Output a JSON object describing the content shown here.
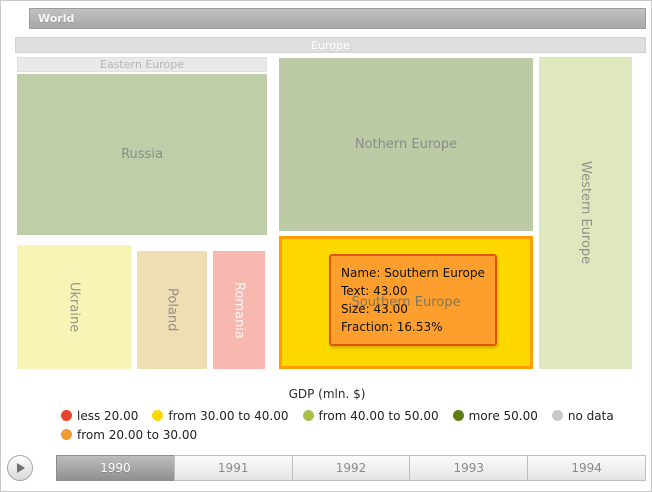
{
  "treemap": {
    "root_label": "World",
    "level1_label": "Europe",
    "group_labels": {
      "eastern": "Eastern Europe"
    },
    "nodes": {
      "russia": {
        "label": "Russia"
      },
      "ukraine": {
        "label": "Ukraine"
      },
      "poland": {
        "label": "Poland"
      },
      "romania": {
        "label": "Romania"
      },
      "nothern": {
        "label": "Nothern Europe"
      },
      "southern": {
        "label": "Southern Europe"
      },
      "western": {
        "label": "Western Europe"
      }
    }
  },
  "tooltip": {
    "name_line": "Name: Southern Europe",
    "text_line": "Text: 43.00",
    "size_line": "Size: 43.00",
    "fraction_line": "Fraction: 16.53%"
  },
  "legend": {
    "title": "GDP (mln. $)",
    "row1": [
      {
        "label": "less 20.00",
        "color": "#e8432a"
      },
      {
        "label": "from 30.00 to 40.00",
        "color": "#ffd700"
      },
      {
        "label": "from 40.00 to 50.00",
        "color": "#a9bf4d"
      },
      {
        "label": "more 50.00",
        "color": "#5e7d17"
      },
      {
        "label": "no data",
        "color": "#c9c9c9"
      }
    ],
    "row2": [
      {
        "label": "from 20.00 to 30.00",
        "color": "#f29b30"
      }
    ]
  },
  "timeline": {
    "play_icon": "play-icon",
    "years": [
      "1990",
      "1991",
      "1992",
      "1993",
      "1994"
    ],
    "selected_year": "1990"
  },
  "colors": {
    "selected_node_fill": "#ffd800",
    "selected_node_border": "#ff9c00",
    "tooltip_fill": "#fd9b2f",
    "tooltip_border": "#e05600",
    "node_green": "#bccaa6",
    "node_light_green": "#dfe7bd",
    "node_pale_yellow": "#f8f4b5",
    "node_tan": "#efddb4",
    "node_pink": "#f8b8b0",
    "header_gray": "#b3b3b3"
  },
  "chart_data": {
    "type": "treemap",
    "title": "GDP (mln. $)",
    "hierarchy": [
      "World",
      "Europe"
    ],
    "selected": {
      "name": "Southern Europe",
      "text": 43.0,
      "size": 43.0,
      "fraction_pct": 16.53
    },
    "nodes": [
      {
        "name": "Russia",
        "group": "Eastern Europe",
        "size_estimated": 50
      },
      {
        "name": "Ukraine",
        "group": "Eastern Europe",
        "size_estimated": 17
      },
      {
        "name": "Poland",
        "group": "Eastern Europe",
        "size_estimated": 10
      },
      {
        "name": "Romania",
        "group": "Eastern Europe",
        "size_estimated": 7.5
      },
      {
        "name": "Nothern Europe",
        "group": "Europe",
        "size_estimated": 55
      },
      {
        "name": "Southern Europe",
        "group": "Europe",
        "size": 43.0
      },
      {
        "name": "Western Europe",
        "group": "Europe",
        "size_estimated": 36
      }
    ],
    "legend_bins": [
      "less 20.00",
      "from 20.00 to 30.00",
      "from 30.00 to 40.00",
      "from 40.00 to 50.00",
      "more 50.00",
      "no data"
    ],
    "timeline_years": [
      1990,
      1991,
      1992,
      1993,
      1994
    ],
    "current_year": 1990
  }
}
